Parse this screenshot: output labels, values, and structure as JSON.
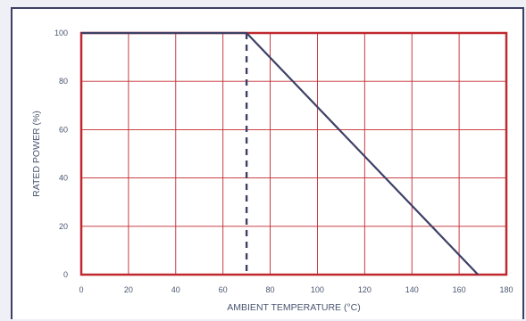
{
  "chart_data": {
    "type": "line",
    "xlabel": "AMBIENT TEMPERATURE (°C)",
    "ylabel": "RATED POWER (%)",
    "xlim": [
      0,
      180
    ],
    "ylim": [
      0,
      100
    ],
    "x_ticks": [
      "0",
      "20",
      "40",
      "60",
      "80",
      "100",
      "120",
      "140",
      "160",
      "180"
    ],
    "y_ticks": [
      "0",
      "20",
      "40",
      "60",
      "80",
      "100"
    ],
    "grid": true,
    "series": [
      {
        "points": [
          [
            0,
            100
          ],
          [
            70,
            100
          ],
          [
            168,
            0
          ]
        ]
      }
    ],
    "reference_line": {
      "x": 70,
      "from_y": 0,
      "to_y": 100,
      "style": "dashed"
    },
    "colors": {
      "frame": "#c0282f",
      "grid": "#c0282f",
      "line": "#3d3f66",
      "text": "#4a5670"
    }
  }
}
